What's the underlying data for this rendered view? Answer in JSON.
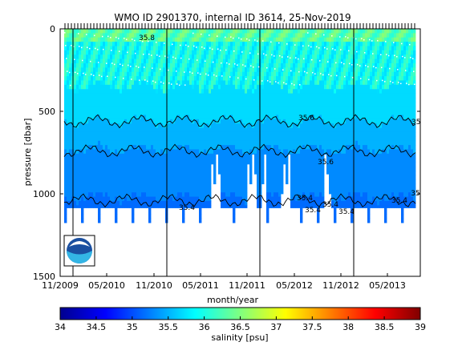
{
  "chart_data": {
    "type": "heatmap",
    "title": "WMO ID 2901370, internal ID 3614, 25-Nov-2019",
    "xlabel": "month/year",
    "ylabel": "pressure [dbar]",
    "x_ticks": [
      "11/2009",
      "05/2010",
      "11/2010",
      "05/2011",
      "11/2011",
      "05/2012",
      "11/2012",
      "05/2013"
    ],
    "y_ticks": [
      0,
      500,
      1000,
      1500
    ],
    "ylim": [
      0,
      1500
    ],
    "y_reversed": true,
    "colorbar": {
      "label": "salinity [psu]",
      "min": 34,
      "max": 39,
      "ticks": [
        "34",
        "34.5",
        "35",
        "35.5",
        "36",
        "36.5",
        "37",
        "37.5",
        "38",
        "38.5",
        "39"
      ],
      "colormap": "jet"
    },
    "contour_labels": [
      "35.8",
      "35.6",
      "35.6",
      "35.4",
      "35.4",
      "35.4",
      "35.4",
      "35.4",
      "35.4",
      "35",
      "35.4"
    ],
    "logo": "noaa-logo"
  }
}
